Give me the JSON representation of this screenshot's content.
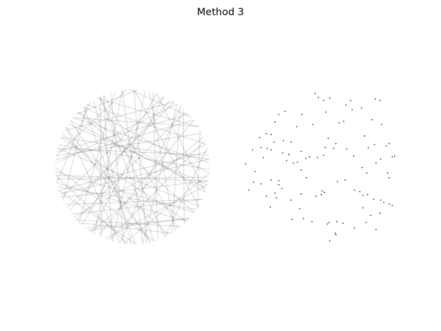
{
  "figure": {
    "title": "Method 3",
    "background": "#ffffff"
  },
  "chart_data": [
    {
      "type": "line",
      "panel": "left",
      "xlim": [
        -1,
        1
      ],
      "ylim": [
        -1,
        1
      ],
      "grid": false,
      "axes_visible": false,
      "line_color": "#000000",
      "line_opacity": 0.13,
      "chords": [
        [
          0.5,
          12.0
        ],
        [
          1.7,
          4.2
        ],
        [
          5.7,
          3.4
        ],
        [
          2.0,
          5.0
        ],
        [
          3.9,
          0.8
        ],
        [
          0.15,
          2.9
        ],
        [
          2.55,
          6.05
        ],
        [
          5.3,
          1.35
        ],
        [
          4.4,
          0.35
        ],
        [
          1.05,
          3.75
        ],
        [
          6.2,
          2.25
        ],
        [
          3.2,
          5.65
        ],
        [
          0.95,
          4.85
        ],
        [
          2.35,
          5.95
        ],
        [
          4.9,
          1.55
        ],
        [
          0.65,
          3.05
        ],
        [
          5.5,
          2.75
        ],
        [
          1.85,
          4.6
        ],
        [
          3.55,
          6.1
        ],
        [
          0.05,
          2.45
        ],
        [
          4.15,
          1.15
        ],
        [
          2.7,
          5.2
        ],
        [
          5.85,
          3.65
        ],
        [
          1.25,
          4.0
        ],
        [
          3.0,
          0.45
        ],
        [
          4.7,
          2.1
        ],
        [
          0.85,
          5.45
        ],
        [
          2.15,
          3.35
        ],
        [
          6.05,
          4.35
        ],
        [
          1.55,
          5.75
        ],
        [
          3.45,
          0.2
        ],
        [
          4.55,
          2.6
        ],
        [
          0.3,
          3.85
        ],
        [
          5.15,
          2.0
        ],
        [
          2.85,
          6.25
        ],
        [
          1.4,
          4.45
        ],
        [
          3.7,
          1.0
        ],
        [
          5.65,
          2.35
        ],
        [
          0.75,
          2.95
        ],
        [
          4.05,
          5.55
        ],
        [
          2.45,
          0.55
        ],
        [
          5.0,
          3.15
        ],
        [
          1.95,
          5.35
        ],
        [
          3.3,
          6.15
        ],
        [
          0.4,
          4.15
        ],
        [
          4.85,
          1.7
        ],
        [
          2.25,
          4.75
        ],
        [
          5.95,
          1.25
        ],
        [
          1.15,
          3.55
        ],
        [
          3.8,
          5.85
        ],
        [
          0.55,
          2.05
        ],
        [
          4.25,
          0.65
        ],
        [
          2.6,
          4.95
        ],
        [
          5.4,
          3.9
        ],
        [
          1.65,
          3.0
        ],
        [
          3.1,
          0.95
        ],
        [
          0.1,
          3.5
        ],
        [
          4.6,
          6.2
        ],
        [
          2.0,
          4.3
        ],
        [
          5.75,
          2.9
        ],
        [
          1.3,
          5.05
        ],
        [
          3.6,
          2.2
        ],
        [
          0.9,
          4.55
        ],
        [
          4.95,
          2.5
        ],
        [
          2.75,
          0.1
        ],
        [
          6.1,
          3.25
        ],
        [
          1.8,
          3.95
        ],
        [
          3.35,
          5.5
        ],
        [
          0.25,
          5.15
        ],
        [
          4.45,
          1.95
        ],
        [
          2.5,
          6.0
        ],
        [
          5.25,
          0.9
        ],
        [
          1.0,
          2.65
        ],
        [
          3.95,
          5.25
        ],
        [
          0.7,
          1.6
        ],
        [
          4.75,
          3.45
        ],
        [
          2.2,
          0.3
        ],
        [
          5.55,
          4.1
        ],
        [
          1.5,
          2.4
        ],
        [
          3.25,
          4.65
        ]
      ]
    },
    {
      "type": "scatter",
      "panel": "right",
      "xlim": [
        -1,
        1
      ],
      "ylim": [
        -1,
        1
      ],
      "grid": false,
      "axes_visible": false,
      "marker_color": "#222222",
      "points": [
        [
          0.34,
          0.8
        ],
        [
          0.42,
          0.74
        ],
        [
          0.54,
          0.76
        ],
        [
          0.72,
          0.88
        ],
        [
          0.78,
          0.86
        ],
        [
          -0.45,
          0.72
        ],
        [
          -0.23,
          0.68
        ],
        [
          -0.58,
          0.58
        ],
        [
          -0.53,
          0.68
        ],
        [
          -0.3,
          0.52
        ],
        [
          0.08,
          0.71
        ],
        [
          0.25,
          0.57
        ],
        [
          0.31,
          0.59
        ],
        [
          0.68,
          0.61
        ],
        [
          0.8,
          0.55
        ],
        [
          -0.06,
          0.95
        ],
        [
          -0.02,
          0.9
        ],
        [
          0.05,
          0.86
        ],
        [
          0.13,
          0.89
        ],
        [
          0.4,
          0.86
        ],
        [
          -0.78,
          0.38
        ],
        [
          -0.69,
          0.43
        ],
        [
          -0.63,
          0.42
        ],
        [
          -0.59,
          0.32
        ],
        [
          -0.47,
          0.34
        ],
        [
          -0.37,
          0.32
        ],
        [
          -0.09,
          0.55
        ],
        [
          0.11,
          0.37
        ],
        [
          0.21,
          0.3
        ],
        [
          0.58,
          0.4
        ],
        [
          -0.87,
          0.22
        ],
        [
          -0.76,
          0.25
        ],
        [
          -0.68,
          0.24
        ],
        [
          -0.63,
          0.22
        ],
        [
          -0.48,
          0.18
        ],
        [
          -0.4,
          0.16
        ],
        [
          -0.24,
          0.2
        ],
        [
          0.07,
          0.25
        ],
        [
          0.18,
          0.24
        ],
        [
          0.35,
          0.23
        ],
        [
          0.63,
          0.25
        ],
        [
          0.71,
          0.29
        ],
        [
          0.86,
          0.27
        ],
        [
          0.9,
          0.3
        ],
        [
          -0.96,
          0.04
        ],
        [
          -0.84,
          -0.06
        ],
        [
          -0.73,
          0.12
        ],
        [
          -0.43,
          0.08
        ],
        [
          -0.34,
          0.05
        ],
        [
          -0.29,
          0.06
        ],
        [
          -0.18,
          0.11
        ],
        [
          -0.13,
          0.13
        ],
        [
          -0.03,
          0.12
        ],
        [
          0.05,
          0.15
        ],
        [
          0.44,
          0.14
        ],
        [
          0.73,
          0.05
        ],
        [
          0.79,
          0.1
        ],
        [
          0.94,
          0.13
        ],
        [
          0.97,
          0.14
        ],
        [
          -0.86,
          -0.2
        ],
        [
          -0.76,
          -0.22
        ],
        [
          -0.63,
          -0.17
        ],
        [
          -0.53,
          -0.23
        ],
        [
          -0.49,
          -0.28
        ],
        [
          -0.58,
          -0.34
        ],
        [
          -0.24,
          -0.04
        ],
        [
          -0.17,
          -0.14
        ],
        [
          -0.53,
          -0.18
        ],
        [
          0.23,
          -0.19
        ],
        [
          0.33,
          -0.17
        ],
        [
          0.55,
          -0.01
        ],
        [
          0.61,
          -0.08
        ],
        [
          0.88,
          -0.08
        ],
        [
          0.9,
          -0.14
        ],
        [
          -0.92,
          -0.3
        ],
        [
          -0.69,
          -0.38
        ],
        [
          -0.56,
          -0.4
        ],
        [
          -0.37,
          -0.43
        ],
        [
          -0.24,
          -0.35
        ],
        [
          -0.05,
          -0.38
        ],
        [
          0.03,
          -0.31
        ],
        [
          0.06,
          -0.33
        ],
        [
          0.02,
          -0.36
        ],
        [
          0.45,
          -0.3
        ],
        [
          0.52,
          -0.32
        ],
        [
          0.56,
          -0.37
        ],
        [
          0.62,
          -0.36
        ],
        [
          0.7,
          -0.42
        ],
        [
          0.79,
          -0.43
        ],
        [
          0.83,
          -0.46
        ],
        [
          0.9,
          -0.48
        ],
        [
          0.94,
          -0.5
        ],
        [
          -0.36,
          -0.68
        ],
        [
          -0.21,
          -0.67
        ],
        [
          -0.1,
          -0.71
        ],
        [
          -0.64,
          -0.52
        ],
        [
          -0.26,
          -0.54
        ],
        [
          0.56,
          -0.53
        ],
        [
          0.66,
          -0.63
        ],
        [
          0.22,
          -0.71
        ],
        [
          0.3,
          -0.73
        ],
        [
          0.45,
          -0.79
        ],
        [
          0.2,
          -0.86
        ],
        [
          0.21,
          -0.88
        ],
        [
          0.13,
          -0.96
        ],
        [
          0.78,
          -0.6
        ],
        [
          0.73,
          -0.81
        ],
        [
          0.6,
          -0.72
        ],
        [
          0.12,
          -0.72
        ],
        [
          0.1,
          -0.74
        ]
      ]
    }
  ]
}
